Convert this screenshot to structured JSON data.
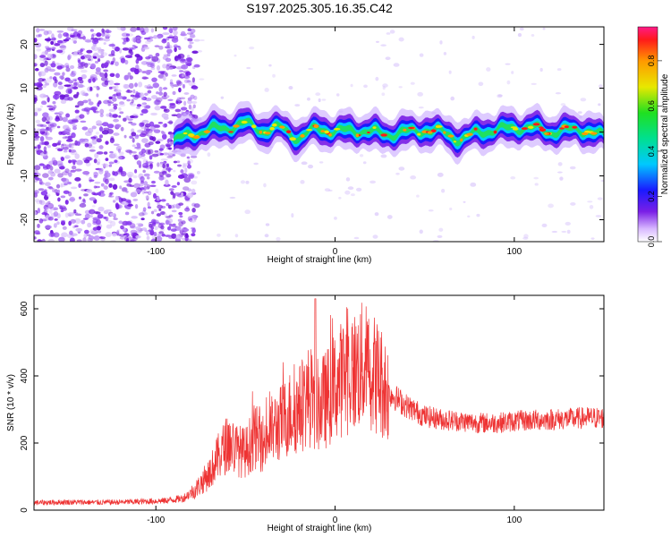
{
  "title": "S197.2025.305.16.35.C42",
  "chart_data": [
    {
      "type": "heatmap",
      "xlabel": "Height of straight line (km)",
      "ylabel": "Frequency (Hz)",
      "xlim": [
        -168,
        150
      ],
      "ylim": [
        -25,
        24
      ],
      "xticks": [
        -100,
        0,
        100
      ],
      "yticks": [
        -20,
        -10,
        0,
        10,
        20
      ],
      "noise_region": {
        "x": [
          -168,
          -77
        ],
        "y": [
          -25,
          24
        ]
      },
      "ridge": {
        "x": [
          -90,
          -80,
          -70,
          -60,
          -50,
          -40,
          -30,
          -20,
          -10,
          0,
          10,
          20,
          30,
          40,
          50,
          60,
          70,
          80,
          90,
          100,
          110,
          120,
          130,
          140,
          150
        ],
        "y": [
          -2,
          -0.5,
          0.5,
          1,
          2,
          0.3,
          1,
          -1.5,
          1,
          0,
          0.5,
          0,
          -0.5,
          0,
          0.5,
          0,
          -1.8,
          0,
          0.5,
          1,
          1,
          0,
          0.5,
          0.5,
          -1
        ]
      },
      "colorbar": {
        "label": "Normalized spectral amplitude",
        "range": [
          0.0,
          0.95
        ],
        "ticks": [
          0.0,
          0.2,
          0.4,
          0.6,
          0.8
        ]
      }
    },
    {
      "type": "line",
      "xlabel": "Height of straight line (km)",
      "ylabel": "SNR (10 * v/v)",
      "xlim": [
        -168,
        150
      ],
      "ylim": [
        0,
        640
      ],
      "xticks": [
        -100,
        0,
        100
      ],
      "yticks": [
        0,
        200,
        400,
        600
      ],
      "color": "#ee3333",
      "series": [
        {
          "x": [
            -168,
            -150,
            -130,
            -110,
            -95,
            -85,
            -78,
            -70,
            -65,
            -60,
            -55,
            -50,
            -45,
            -40,
            -35,
            -30,
            -25,
            -20,
            -15,
            -10,
            -5,
            0,
            5,
            10,
            15,
            20,
            25,
            30,
            40,
            50,
            60,
            70,
            80,
            90,
            100,
            110,
            120,
            130,
            140,
            150
          ],
          "y": [
            22,
            24,
            23,
            25,
            28,
            35,
            60,
            110,
            160,
            200,
            180,
            170,
            220,
            200,
            240,
            260,
            290,
            300,
            340,
            310,
            330,
            370,
            400,
            410,
            430,
            420,
            390,
            350,
            310,
            280,
            270,
            265,
            260,
            260,
            265,
            268,
            270,
            272,
            275,
            275
          ]
        }
      ]
    }
  ],
  "colors": {
    "line": "#ee3333",
    "noise": "#7a1fe6",
    "background": "#ffffff"
  }
}
